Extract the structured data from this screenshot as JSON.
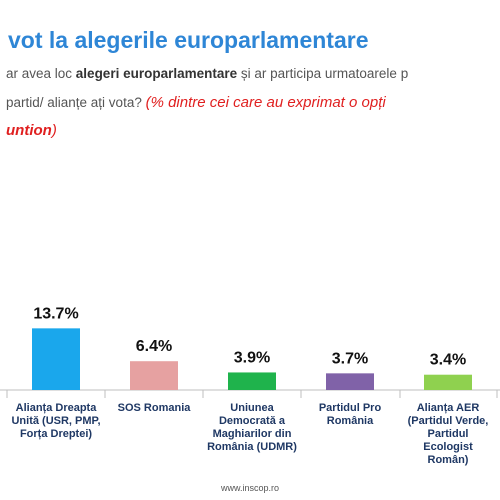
{
  "chart_data": {
    "type": "bar",
    "title": "vot la alegerile europarlamentare",
    "question": [
      [
        {
          "text": "ar avea loc ",
          "style": "normal"
        },
        {
          "text": "alegeri europarlamentare",
          "style": "bold"
        },
        {
          "text": " și ar participa urmatoarele p",
          "style": "normal"
        }
      ],
      [
        {
          "text": "partid/ alianțe ați vota? ",
          "style": "normal"
        },
        {
          "text": "(% dintre cei care au exprimat o opți",
          "style": "red-italic"
        }
      ],
      [
        {
          "text": "untion",
          "style": "red-bold-italic"
        },
        {
          "text": ")",
          "style": "red-italic"
        }
      ]
    ],
    "categories": [
      "Alianța Dreapta Unită (USR, PMP, Forța Dreptei)",
      "SOS Romania",
      "Uniunea Democrată a Maghiarilor din România (UDMR)",
      "Partidul Pro România",
      "Alianța AER (Partidul Verde, Partidul Ecologist Român)"
    ],
    "values": [
      13.7,
      6.4,
      3.9,
      3.7,
      3.4
    ],
    "value_labels": [
      "13.7%",
      "6.4%",
      "3.9%",
      "3.7%",
      "3.4%"
    ],
    "colors": [
      "#1aa7ec",
      "#e6a1a1",
      "#1fb34c",
      "#8062a8",
      "#8fd14f"
    ],
    "source": "www.inscop.ro"
  }
}
